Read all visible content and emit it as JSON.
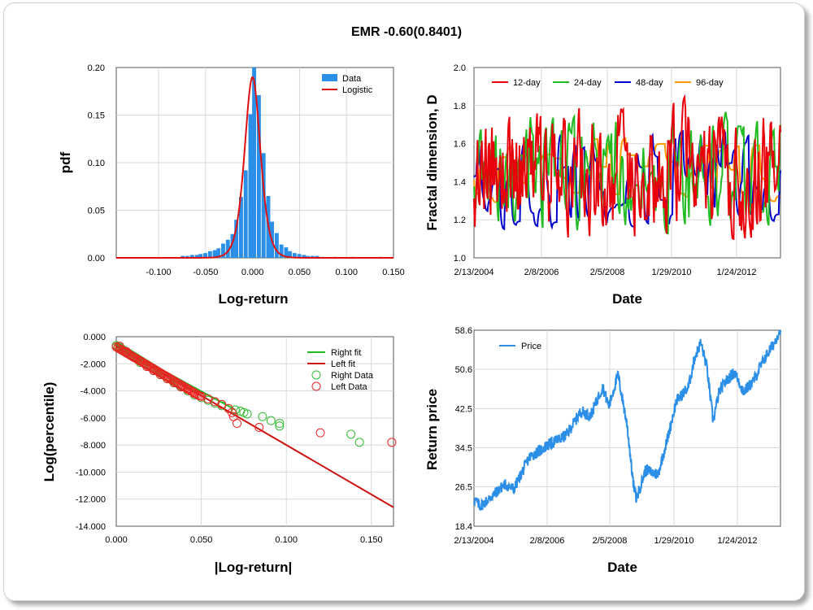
{
  "title": "EMR -0.60(0.8401)",
  "chart_data": [
    {
      "type": "bar",
      "xlabel": "Log-return",
      "ylabel": "pdf",
      "xlim": [
        -0.145,
        0.15
      ],
      "ylim": [
        0,
        0.2
      ],
      "xticks": [
        "-0.100",
        "-0.050",
        "0.000",
        "0.050",
        "0.100",
        "0.150"
      ],
      "xtick_values": [
        -0.1,
        -0.05,
        0,
        0.05,
        0.1,
        0.15
      ],
      "yticks": [
        "0.00",
        "0.05",
        "0.10",
        "0.15",
        "0.20"
      ],
      "ytick_values": [
        0,
        0.05,
        0.1,
        0.15,
        0.2
      ],
      "legend": [
        "Data",
        "Logistic"
      ],
      "legend_position": "top-right",
      "colors": {
        "data": "#2b8fe8",
        "fit": "#dd1111"
      },
      "bin_width": 0.00475,
      "bins": [
        -0.074,
        -0.069,
        -0.064,
        -0.059,
        -0.055,
        -0.05,
        -0.045,
        -0.04,
        -0.036,
        -0.031,
        -0.026,
        -0.021,
        -0.017,
        -0.012,
        -0.007,
        -0.002,
        0.002,
        0.007,
        0.012,
        0.017,
        0.021,
        0.026,
        0.031,
        0.036,
        0.04,
        0.045,
        0.05,
        0.055,
        0.059,
        0.064,
        0.069,
        0.074,
        0.088,
        0.107,
        0.136
      ],
      "values": [
        0.002,
        0.002,
        0.003,
        0.003,
        0.004,
        0.005,
        0.007,
        0.008,
        0.01,
        0.015,
        0.019,
        0.025,
        0.04,
        0.064,
        0.092,
        0.151,
        0.2,
        0.171,
        0.11,
        0.065,
        0.038,
        0.026,
        0.014,
        0.011,
        0.007,
        0.005,
        0.004,
        0.003,
        0.002,
        0.002,
        0.002,
        0.001,
        0.001,
        0.001,
        0.001
      ],
      "fit_peak": 0.19,
      "fit_center": 0.0,
      "fit_scale": 0.0056
    },
    {
      "type": "line",
      "xlabel": "Date",
      "ylabel": "Fractal dimension, D",
      "xlim": [
        "2/13/2004",
        "6/15/2013"
      ],
      "ylim": [
        1.0,
        2.0
      ],
      "xticks": [
        "2/13/2004",
        "2/8/2006",
        "2/5/2008",
        "1/29/2010",
        "1/24/2012"
      ],
      "yticks": [
        "1.0",
        "1.2",
        "1.4",
        "1.6",
        "1.8",
        "2.0"
      ],
      "ytick_values": [
        1.0,
        1.2,
        1.4,
        1.6,
        1.8,
        2.0
      ],
      "legend_position": "top",
      "series": [
        {
          "name": "12-day",
          "color": "#e8000b",
          "period": 12,
          "center": 1.45,
          "amplitude": 0.3
        },
        {
          "name": "24-day",
          "color": "#22bb22",
          "period": 24,
          "center": 1.45,
          "amplitude": 0.25
        },
        {
          "name": "48-day",
          "color": "#0000cc",
          "period": 48,
          "center": 1.42,
          "amplitude": 0.2
        },
        {
          "name": "96-day",
          "color": "#ff9900",
          "period": 96,
          "center": 1.45,
          "amplitude": 0.13
        }
      ]
    },
    {
      "type": "scatter",
      "xlabel": "|Log-return|",
      "ylabel": "Log(percentile)",
      "xlim": [
        0.0,
        0.163
      ],
      "ylim": [
        -14.0,
        0.0
      ],
      "xticks": [
        "0.000",
        "0.050",
        "0.100",
        "0.150"
      ],
      "xtick_values": [
        0,
        0.05,
        0.1,
        0.15
      ],
      "yticks": [
        "0.000",
        "-2.000",
        "-4.000",
        "-6.000",
        "-8.000",
        "-10.000",
        "-12.000",
        "-14.000"
      ],
      "ytick_values": [
        0,
        -2,
        -4,
        -6,
        -8,
        -10,
        -12,
        -14
      ],
      "legend": [
        "Right fit",
        "Left fit",
        "Right Data",
        "Left Data"
      ],
      "legend_position": "top-right",
      "right_fit": {
        "x": [
          0.0,
          0.07
        ],
        "y": [
          -0.6,
          -5.4
        ],
        "color": "#22bb22"
      },
      "left_fit": {
        "x": [
          0.0,
          0.163
        ],
        "y": [
          -0.7,
          -12.6
        ],
        "color": "#cc1111"
      },
      "right_data": {
        "color": "#33bb33",
        "x": [
          0.002,
          0.006,
          0.01,
          0.014,
          0.018,
          0.022,
          0.026,
          0.03,
          0.034,
          0.038,
          0.042,
          0.046,
          0.05,
          0.054,
          0.058,
          0.062,
          0.066,
          0.07,
          0.073,
          0.075,
          0.077,
          0.086,
          0.091,
          0.096,
          0.096,
          0.138,
          0.143
        ],
        "y": [
          -0.8,
          -1.2,
          -1.5,
          -1.9,
          -2.2,
          -2.5,
          -2.8,
          -3.1,
          -3.4,
          -3.7,
          -4.0,
          -4.3,
          -4.5,
          -4.7,
          -4.9,
          -5.1,
          -5.3,
          -5.4,
          -5.5,
          -5.6,
          -5.7,
          -5.9,
          -6.2,
          -6.4,
          -6.6,
          -7.2,
          -7.8
        ]
      },
      "left_data": {
        "color": "#ee2222",
        "x": [
          0.002,
          0.006,
          0.01,
          0.014,
          0.018,
          0.022,
          0.026,
          0.03,
          0.034,
          0.038,
          0.042,
          0.046,
          0.05,
          0.054,
          0.058,
          0.062,
          0.066,
          0.068,
          0.069,
          0.071,
          0.084,
          0.12,
          0.162
        ],
        "y": [
          -0.7,
          -1.1,
          -1.5,
          -1.8,
          -2.2,
          -2.5,
          -2.8,
          -3.1,
          -3.4,
          -3.7,
          -3.9,
          -4.2,
          -4.4,
          -4.6,
          -4.8,
          -5.0,
          -5.3,
          -5.6,
          -5.9,
          -6.4,
          -6.7,
          -7.1,
          -7.8
        ]
      }
    },
    {
      "type": "line",
      "xlabel": "Date",
      "ylabel": "Return price",
      "xlim": [
        "2/13/2004",
        "6/15/2013"
      ],
      "ylim": [
        18.4,
        58.6
      ],
      "xticks": [
        "2/13/2004",
        "2/8/2006",
        "2/5/2008",
        "1/29/2010",
        "1/24/2012"
      ],
      "yticks": [
        "18.4",
        "26.5",
        "34.5",
        "42.5",
        "50.6",
        "58.6"
      ],
      "ytick_values": [
        18.4,
        26.5,
        34.5,
        42.5,
        50.6,
        58.6
      ],
      "legend_position": "top-left",
      "series": [
        {
          "name": "Price",
          "color": "#2b8fe8",
          "t": [
            0.0,
            0.02,
            0.05,
            0.1,
            0.13,
            0.18,
            0.24,
            0.3,
            0.35,
            0.38,
            0.42,
            0.44,
            0.47,
            0.5,
            0.52,
            0.53,
            0.56,
            0.6,
            0.63,
            0.66,
            0.7,
            0.72,
            0.74,
            0.76,
            0.78,
            0.8,
            0.82,
            0.85,
            0.88,
            0.91,
            0.95,
            0.98,
            1.0
          ],
          "values": [
            24.0,
            22.5,
            24.0,
            27.0,
            26.0,
            32.5,
            35.0,
            37.0,
            42.0,
            41.0,
            47.0,
            43.0,
            49.5,
            39.0,
            27.0,
            24.0,
            30.0,
            29.0,
            36.0,
            44.0,
            47.0,
            53.0,
            56.0,
            51.0,
            40.0,
            46.0,
            48.0,
            50.0,
            46.0,
            48.0,
            53.0,
            56.0,
            59.0
          ]
        }
      ]
    }
  ]
}
